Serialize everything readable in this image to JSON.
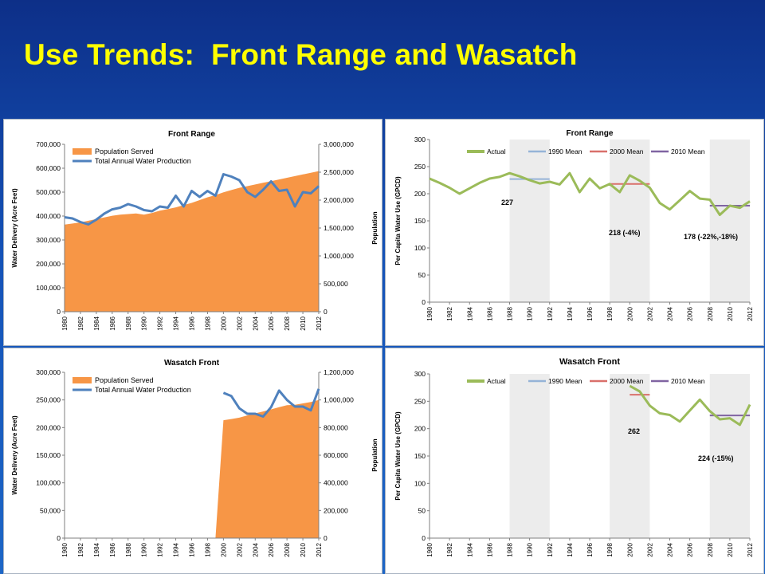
{
  "slide": {
    "title": "Use Trends:  Front Range and Wasatch"
  },
  "colors": {
    "background": "#1553b8",
    "title": "#ffff00",
    "population_fill": "#f79646",
    "production_line": "#4f81bd",
    "actual_line": "#9bbb59",
    "mean_1990": "#95b3d7",
    "mean_2000": "#d9706b",
    "mean_2010": "#8064a2",
    "shade": "#ececec"
  },
  "chart_data": [
    {
      "id": "fr-delivery",
      "type": "area",
      "title": "Front Range",
      "ylabel": "Water Delivery  (Acre Feet)",
      "y2label": "Population",
      "ylim": [
        0,
        700000
      ],
      "y2lim": [
        0,
        3000000
      ],
      "yticks": [
        "0",
        "100,000",
        "200,000",
        "300,000",
        "400,000",
        "500,000",
        "600,000",
        "700,000"
      ],
      "y2ticks": [
        "0",
        "500,000",
        "1,000,000",
        "1,500,000",
        "2,000,000",
        "2,500,000",
        "3,000,000"
      ],
      "xticks": [
        "1980",
        "1982",
        "1984",
        "1986",
        "1988",
        "1990",
        "1992",
        "1994",
        "1996",
        "1998",
        "2000",
        "2002",
        "2004",
        "2006",
        "2008",
        "2010",
        "2012"
      ],
      "legend": [
        "Population Served",
        "Total Annual Water Production"
      ],
      "legend_position": "top-left",
      "x": [
        1980,
        1981,
        1982,
        1983,
        1984,
        1985,
        1986,
        1987,
        1988,
        1989,
        1990,
        1991,
        1992,
        1993,
        1994,
        1995,
        1996,
        1997,
        1998,
        1999,
        2000,
        2001,
        2002,
        2003,
        2004,
        2005,
        2006,
        2007,
        2008,
        2009,
        2010,
        2011,
        2012
      ],
      "series": [
        {
          "name": "Population Served",
          "axis": "right",
          "values": [
            1560000,
            1580000,
            1600000,
            1630000,
            1660000,
            1690000,
            1720000,
            1740000,
            1750000,
            1760000,
            1740000,
            1770000,
            1810000,
            1840000,
            1870000,
            1910000,
            1950000,
            2000000,
            2050000,
            2090000,
            2140000,
            2180000,
            2220000,
            2250000,
            2280000,
            2310000,
            2340000,
            2370000,
            2400000,
            2430000,
            2460000,
            2490000,
            2520000
          ]
        },
        {
          "name": "Total Annual Water Production",
          "axis": "left",
          "values": [
            395000,
            390000,
            375000,
            365000,
            385000,
            410000,
            428000,
            435000,
            450000,
            440000,
            425000,
            420000,
            440000,
            435000,
            485000,
            440000,
            505000,
            480000,
            505000,
            485000,
            575000,
            565000,
            550000,
            500000,
            480000,
            510000,
            545000,
            505000,
            510000,
            440000,
            500000,
            495000,
            525000
          ]
        }
      ]
    },
    {
      "id": "fr-gpcd",
      "type": "line",
      "title": "Front Range",
      "ylabel": "Per Capita Water Use (GPCD)",
      "ylim": [
        0,
        300
      ],
      "yticks": [
        "0",
        "50",
        "100",
        "150",
        "200",
        "250",
        "300"
      ],
      "xticks": [
        "1980",
        "1982",
        "1984",
        "1986",
        "1988",
        "1990",
        "1992",
        "1994",
        "1996",
        "1998",
        "2000",
        "2002",
        "2004",
        "2006",
        "2008",
        "2010",
        "2012"
      ],
      "legend": [
        "Actual",
        "1990 Mean",
        "2000 Mean",
        "2010 Mean"
      ],
      "legend_position": "top",
      "shaded_ranges": [
        [
          1988,
          1992
        ],
        [
          1998,
          2002
        ],
        [
          2008,
          2012
        ]
      ],
      "x": [
        1980,
        1981,
        1982,
        1983,
        1984,
        1985,
        1986,
        1987,
        1988,
        1989,
        1990,
        1991,
        1992,
        1993,
        1994,
        1995,
        1996,
        1997,
        1998,
        1999,
        2000,
        2001,
        2002,
        2003,
        2004,
        2005,
        2006,
        2007,
        2008,
        2009,
        2010,
        2011,
        2012
      ],
      "series": [
        {
          "name": "Actual",
          "values": [
            228,
            220,
            211,
            200,
            210,
            220,
            228,
            231,
            238,
            232,
            225,
            219,
            222,
            217,
            238,
            203,
            228,
            210,
            218,
            203,
            234,
            224,
            211,
            183,
            171,
            188,
            205,
            191,
            189,
            161,
            178,
            174,
            186
          ]
        }
      ],
      "means": [
        {
          "name": "1990 Mean",
          "value": 227,
          "range": [
            1988,
            1992
          ]
        },
        {
          "name": "2000 Mean",
          "value": 218,
          "range": [
            1998,
            2002
          ]
        },
        {
          "name": "2010 Mean",
          "value": 178,
          "range": [
            2008,
            2012
          ]
        }
      ],
      "annotations": [
        "227",
        "218 (-4%)",
        "178 (-22%,-18%)"
      ]
    },
    {
      "id": "wf-delivery",
      "type": "area",
      "title": "Wasatch Front",
      "ylabel": "Water  Delivery  (Acre Feet)",
      "y2label": "Population",
      "ylim": [
        0,
        300000
      ],
      "y2lim": [
        0,
        1200000
      ],
      "yticks": [
        "0",
        "50,000",
        "100,000",
        "150,000",
        "200,000",
        "250,000",
        "300,000"
      ],
      "y2ticks": [
        "0",
        "200,000",
        "400,000",
        "600,000",
        "800,000",
        "1,000,000",
        "1,200,000"
      ],
      "xticks": [
        "1980",
        "1982",
        "1984",
        "1986",
        "1988",
        "1990",
        "1992",
        "1994",
        "1996",
        "1998",
        "2000",
        "2002",
        "2004",
        "2006",
        "2008",
        "2010",
        "2012"
      ],
      "legend": [
        "Population Served",
        "Total Annual Water Production"
      ],
      "legend_position": "top-left",
      "x": [
        1999,
        2000,
        2001,
        2002,
        2003,
        2004,
        2005,
        2006,
        2007,
        2008,
        2009,
        2010,
        2011,
        2012
      ],
      "series": [
        {
          "name": "Population Served",
          "axis": "right",
          "values": [
            0,
            853000,
            862000,
            872000,
            888000,
            903000,
            917000,
            932000,
            948000,
            962000,
            965000,
            975000,
            985000,
            1000000
          ]
        },
        {
          "name": "Total Annual Water Production",
          "axis": "left",
          "values": [
            null,
            263000,
            257000,
            235000,
            225000,
            225000,
            220000,
            237000,
            267000,
            250000,
            238000,
            238000,
            231000,
            270000
          ]
        }
      ]
    },
    {
      "id": "wf-gpcd",
      "type": "line",
      "title": "Wasatch Front",
      "ylabel": "Per Capita Water Use (GPCD)",
      "ylim": [
        0,
        300
      ],
      "yticks": [
        "0",
        "50",
        "100",
        "150",
        "200",
        "250",
        "300"
      ],
      "xticks": [
        "1980",
        "1982",
        "1984",
        "1986",
        "1988",
        "1990",
        "1992",
        "1994",
        "1996",
        "1998",
        "2000",
        "2002",
        "2004",
        "2006",
        "2008",
        "2010",
        "2012"
      ],
      "legend": [
        "Actual",
        "1990 Mean",
        "2000 Mean",
        "2010 Mean"
      ],
      "legend_position": "top",
      "shaded_ranges": [
        [
          1988,
          1992
        ],
        [
          1998,
          2002
        ],
        [
          2008,
          2012
        ]
      ],
      "x": [
        2000,
        2001,
        2002,
        2003,
        2004,
        2005,
        2006,
        2007,
        2008,
        2009,
        2010,
        2011,
        2012
      ],
      "series": [
        {
          "name": "Actual",
          "values": [
            278,
            268,
            242,
            228,
            225,
            213,
            233,
            253,
            232,
            217,
            219,
            207,
            244
          ]
        }
      ],
      "means": [
        {
          "name": "2000 Mean",
          "value": 262,
          "range": [
            2000,
            2002
          ]
        },
        {
          "name": "2010 Mean",
          "value": 224,
          "range": [
            2008,
            2012
          ]
        }
      ],
      "annotations": [
        "262",
        "224 (-15%)"
      ]
    }
  ]
}
